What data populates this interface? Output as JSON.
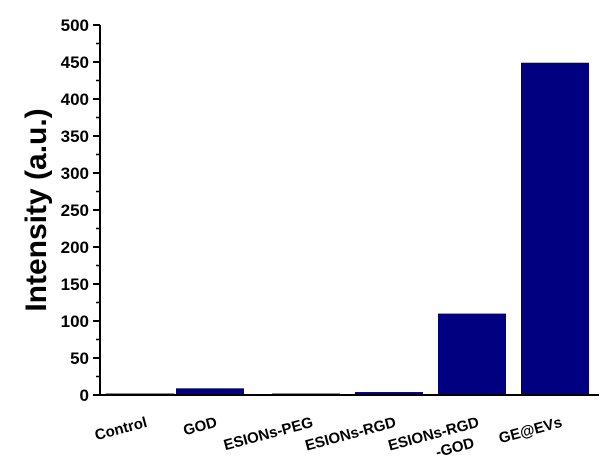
{
  "chart_data": {
    "type": "bar",
    "title": "",
    "xlabel": "",
    "ylabel": "Intensity (a.u.)",
    "categories": [
      "Control",
      "GOD",
      "ESIONs-PEG",
      "ESIONs-RGD",
      "ESIONs-RGD\n-GOD",
      "GE@EVs"
    ],
    "category_label_lines": [
      [
        "Control"
      ],
      [
        "GOD"
      ],
      [
        "ESIONs-PEG"
      ],
      [
        "ESIONs-RGD"
      ],
      [
        "ESIONs-RGD",
        "-GOD"
      ],
      [
        "GE@EVs"
      ]
    ],
    "values": [
      2,
      9,
      2,
      4,
      110,
      449
    ],
    "ylim": [
      0,
      500
    ],
    "yticks": [
      0,
      50,
      100,
      150,
      200,
      250,
      300,
      350,
      400,
      450,
      500
    ],
    "grid": false,
    "legend": "none",
    "bar_color": "#000080"
  }
}
